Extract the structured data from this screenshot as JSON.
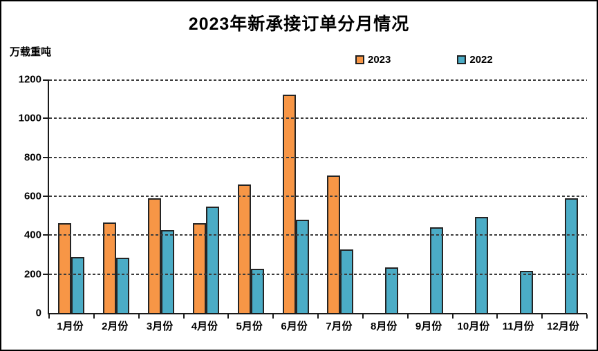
{
  "title": "2023年新承接订单分月情况",
  "unit_label": "万载重吨",
  "legend": [
    {
      "label": "2023",
      "color": "#F79646"
    },
    {
      "label": "2022",
      "color": "#4BACC6"
    }
  ],
  "colors": {
    "series_2023": "#F79646",
    "series_2022": "#4BACC6",
    "bar_border": "#242424",
    "axis": "#1a1a1a",
    "gridline": "#3b3b3b",
    "background": "#ffffff",
    "frame_border": "#000000",
    "text": "#000000"
  },
  "chart_data": {
    "type": "bar",
    "title": "2023年新承接订单分月情况",
    "ylabel": "万载重吨",
    "xlabel": "",
    "categories": [
      "1月份",
      "2月份",
      "3月份",
      "4月份",
      "5月份",
      "6月份",
      "7月份",
      "8月份",
      "9月份",
      "10月份",
      "11月份",
      "12月份"
    ],
    "series": [
      {
        "name": "2023",
        "color": "#F79646",
        "values": [
          460,
          466,
          591,
          463,
          662,
          1122,
          708,
          null,
          null,
          null,
          null,
          null
        ]
      },
      {
        "name": "2022",
        "color": "#4BACC6",
        "values": [
          286,
          284,
          427,
          546,
          227,
          480,
          326,
          233,
          441,
          492,
          217,
          591
        ]
      }
    ],
    "ylim": [
      0,
      1200
    ],
    "yticks": [
      0,
      200,
      400,
      600,
      800,
      1000,
      1200
    ],
    "grid": "horizontal-dashed",
    "legend_position": "top-center"
  }
}
